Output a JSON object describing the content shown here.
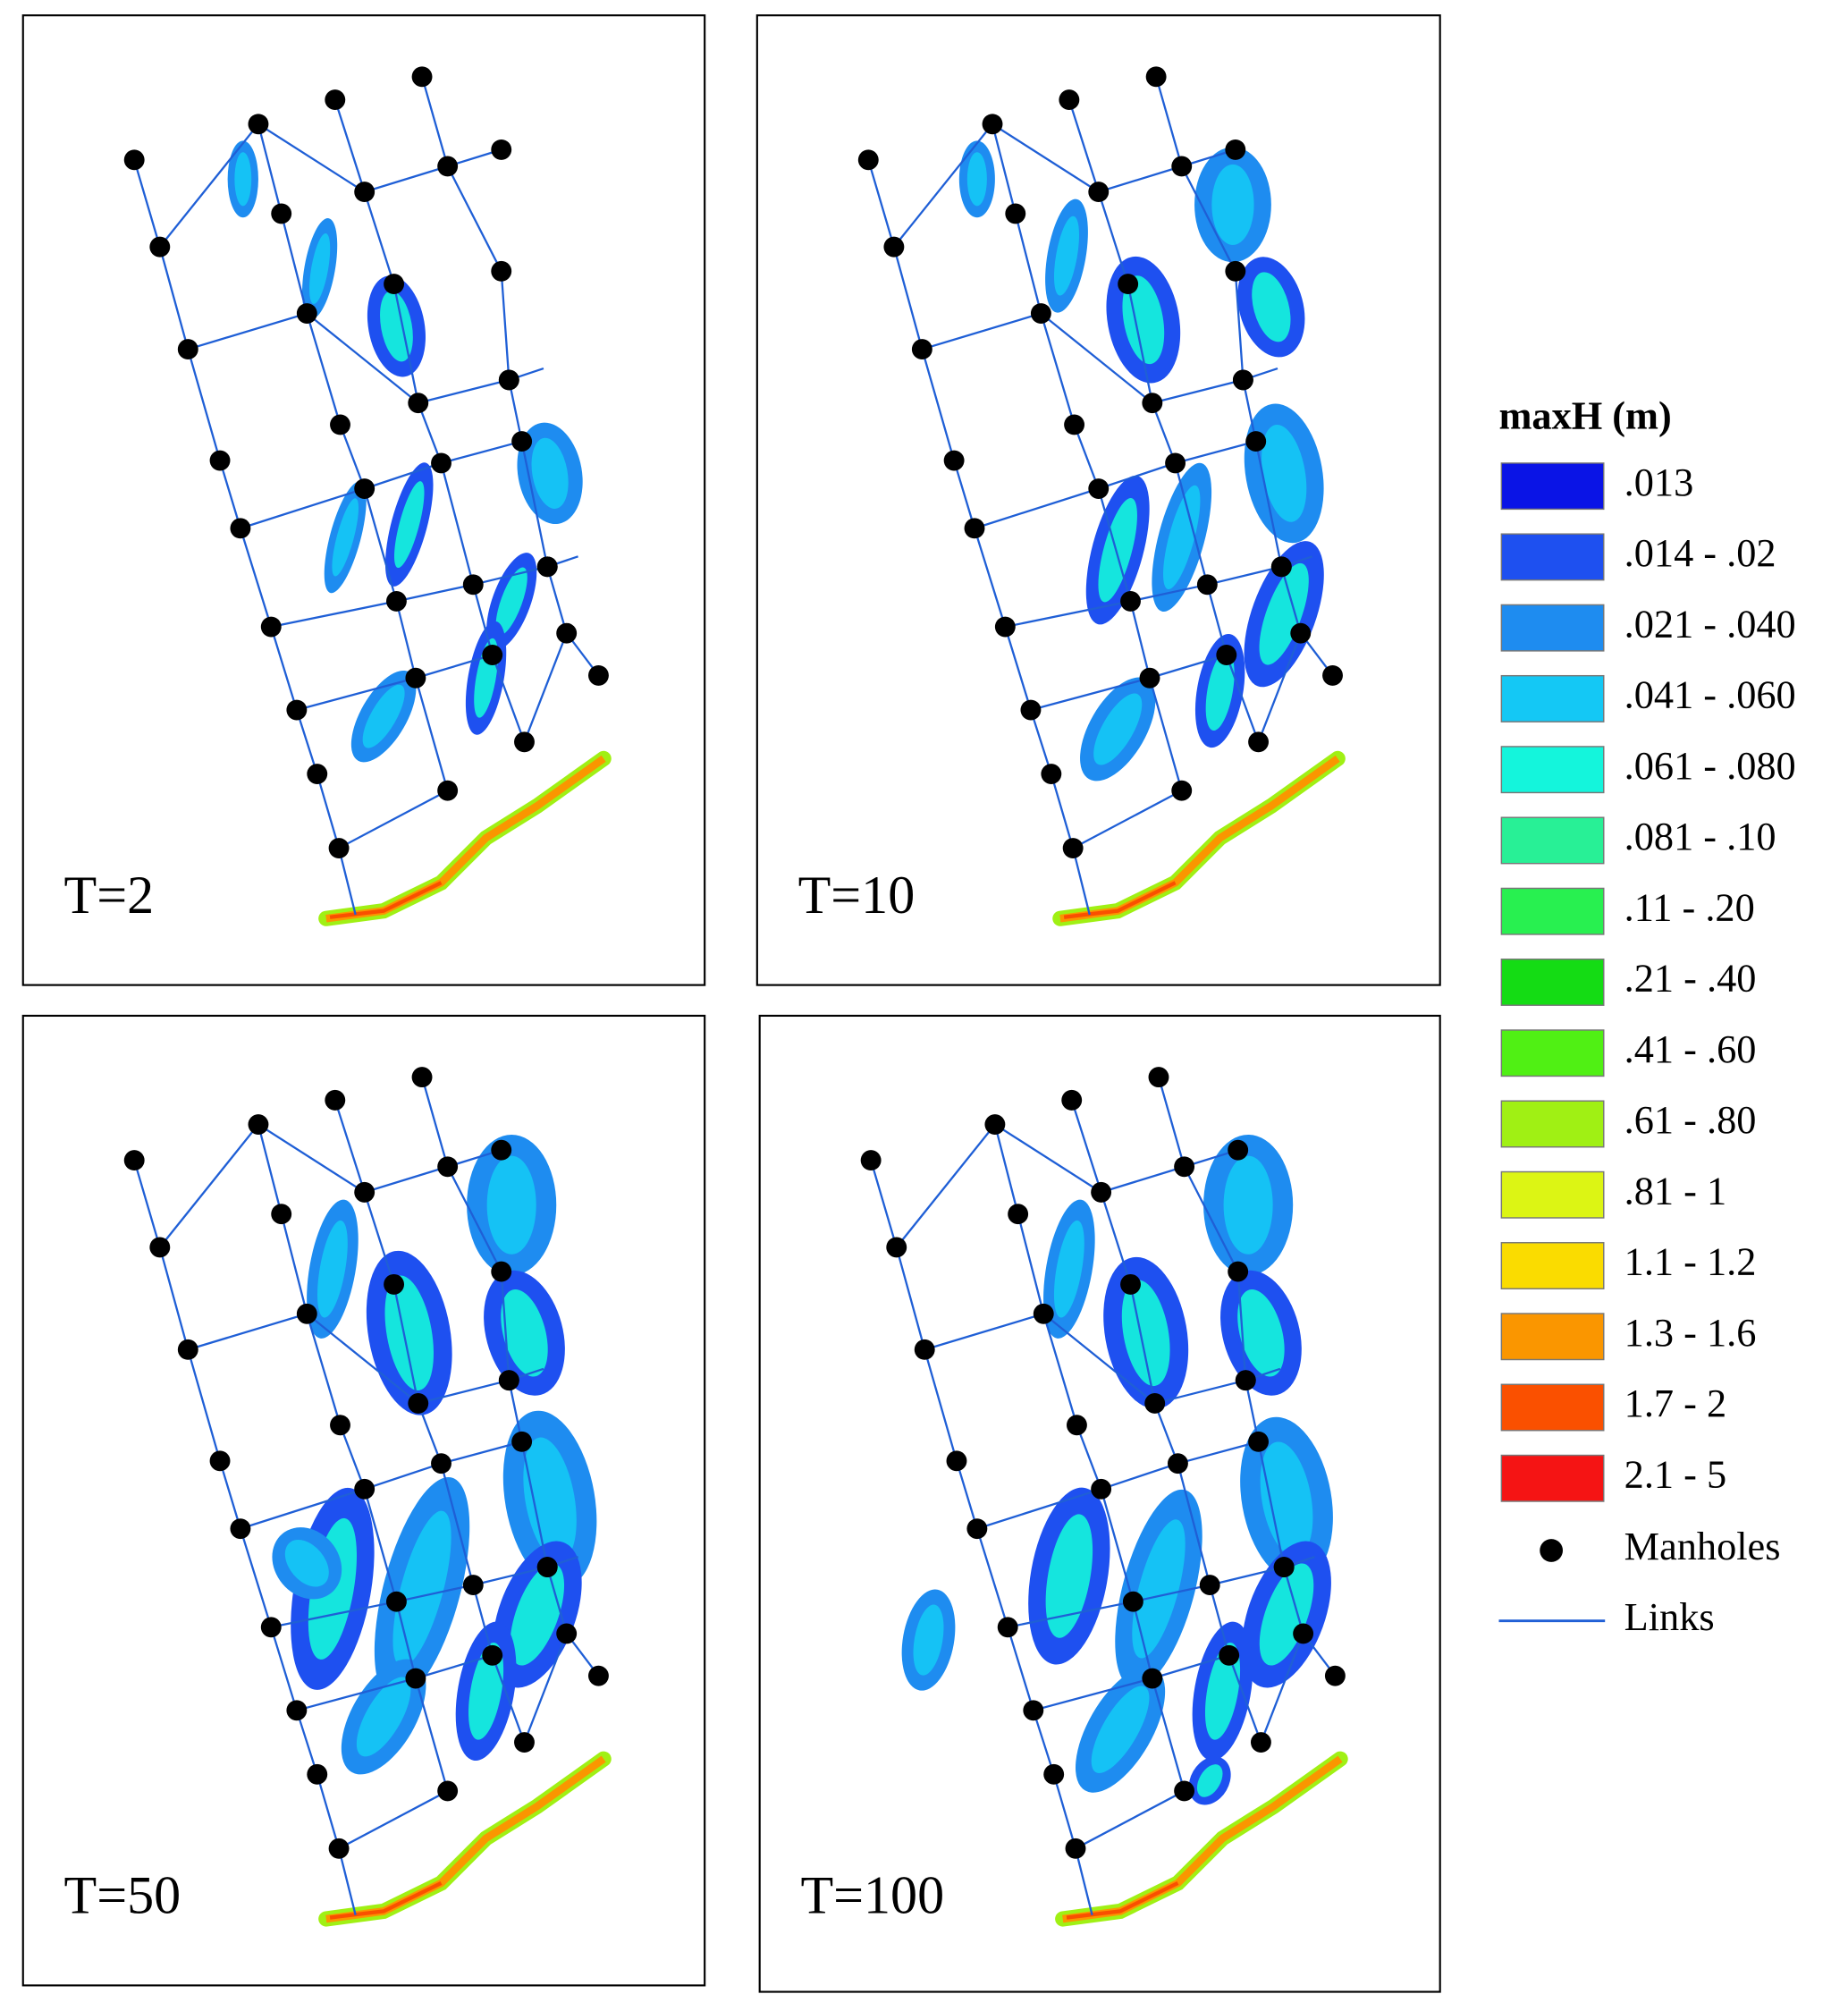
{
  "panels": [
    {
      "label": "T=2"
    },
    {
      "label": "T=10"
    },
    {
      "label": "T=50"
    },
    {
      "label": "T=100"
    }
  ],
  "legend": {
    "title": "maxH (m)",
    "items": [
      {
        "label": ".013",
        "color": "#0a14e6"
      },
      {
        "label": ".014 - .02",
        "color": "#1e50f0"
      },
      {
        "label": ".021 - .040",
        "color": "#1e8cf0"
      },
      {
        "label": ".041 - .060",
        "color": "#14c8f5"
      },
      {
        "label": ".061 - .080",
        "color": "#14f5dc"
      },
      {
        "label": ".081 - .10",
        "color": "#28f096"
      },
      {
        "label": ".11 - .20",
        "color": "#28f050"
      },
      {
        "label": ".21 - .40",
        "color": "#14dc14"
      },
      {
        "label": ".41 - .60",
        "color": "#50f014"
      },
      {
        "label": ".61 - .80",
        "color": "#a0f014"
      },
      {
        "label": ".81 - 1",
        "color": "#dcf514"
      },
      {
        "label": "1.1 - 1.2",
        "color": "#fadc00"
      },
      {
        "label": "1.3 - 1.6",
        "color": "#fa9600"
      },
      {
        "label": "1.7 - 2",
        "color": "#fa5000"
      },
      {
        "label": "2.1 - 5",
        "color": "#f51414"
      }
    ],
    "manholes": "Manholes",
    "links": "Links"
  }
}
